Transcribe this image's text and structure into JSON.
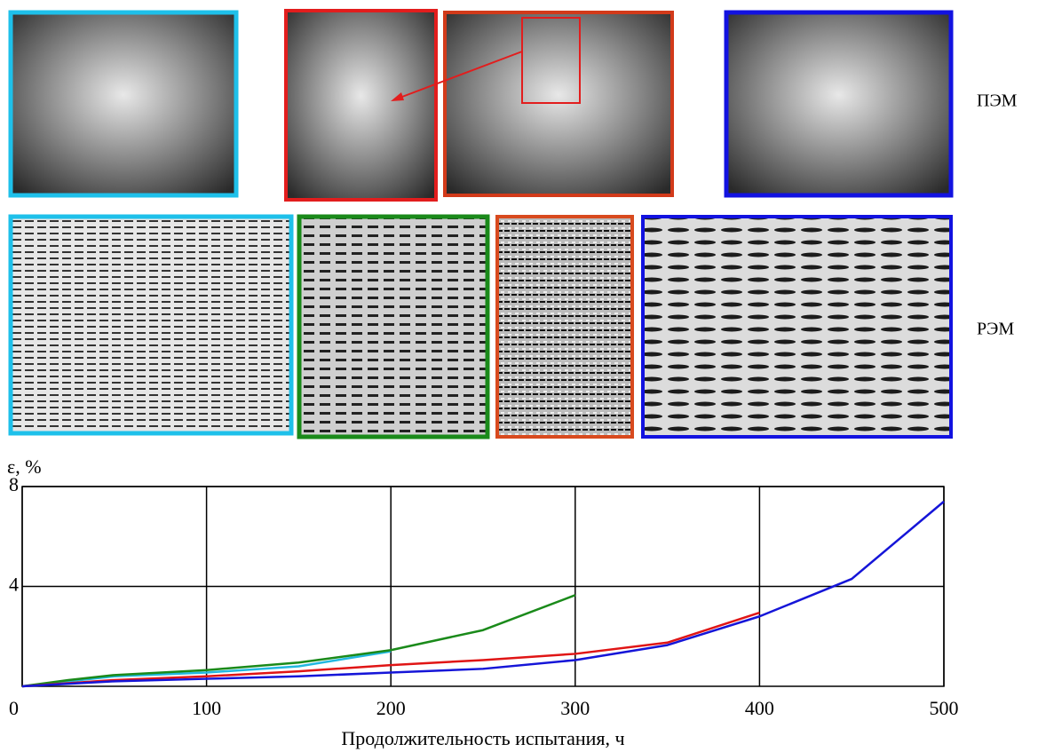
{
  "chart_data": {
    "type": "line",
    "ylabel": "ε, %",
    "xlabel": "Продолжительность испытания, ч",
    "row_labels": [
      "ПЭМ",
      "РЭМ"
    ],
    "xlim": [
      0,
      500
    ],
    "xticks": [
      0,
      100,
      200,
      300,
      400,
      500
    ],
    "ylim": [
      0,
      8
    ],
    "yticks": [
      4,
      8
    ],
    "grid": true,
    "series": [
      {
        "color": "#22b8e0",
        "x": [
          0,
          50,
          100,
          150,
          200
        ],
        "values": [
          0,
          0.4,
          0.55,
          0.8,
          1.4
        ]
      },
      {
        "color": "#1a8a1a",
        "x": [
          0,
          25,
          50,
          100,
          150,
          200,
          250,
          300
        ],
        "values": [
          0,
          0.25,
          0.45,
          0.65,
          0.95,
          1.45,
          2.25,
          3.65
        ]
      },
      {
        "color": "#e01515",
        "x": [
          0,
          50,
          100,
          150,
          200,
          250,
          300,
          350,
          400
        ],
        "values": [
          0,
          0.25,
          0.4,
          0.6,
          0.85,
          1.05,
          1.3,
          1.75,
          2.95
        ]
      },
      {
        "color": "#1515d8",
        "x": [
          0,
          50,
          100,
          150,
          200,
          250,
          300,
          350,
          400,
          450,
          500
        ],
        "values": [
          0,
          0.2,
          0.3,
          0.4,
          0.55,
          0.7,
          1.05,
          1.65,
          2.8,
          4.3,
          7.4
        ]
      }
    ]
  }
}
